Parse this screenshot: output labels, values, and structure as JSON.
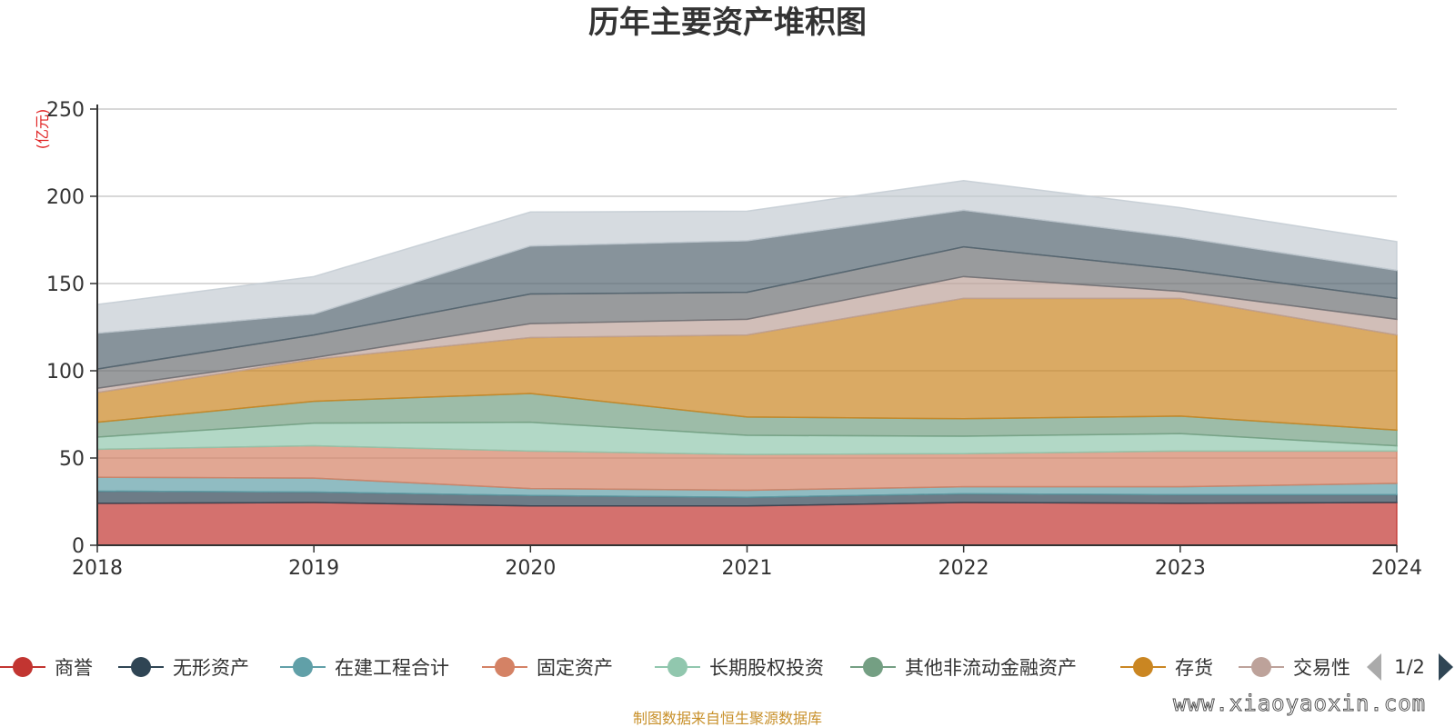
{
  "chart_data": {
    "type": "area",
    "stacked": true,
    "title": "历年主要资产堆积图",
    "ylabel": "(亿元)",
    "xlabel": "",
    "x": [
      "2018",
      "2019",
      "2020",
      "2021",
      "2022",
      "2023",
      "2024"
    ],
    "ylim": [
      0,
      250
    ],
    "yticks": [
      0,
      50,
      100,
      150,
      200,
      250
    ],
    "grid": true,
    "legend_position": "bottom",
    "series": [
      {
        "name": "商誉",
        "color": "#c23531",
        "values": [
          24,
          24.5,
          22.5,
          22.5,
          24.5,
          24,
          24.5
        ]
      },
      {
        "name": "无形资产",
        "color": "#2f4554",
        "values": [
          7,
          6,
          6,
          5,
          5,
          5,
          4.5
        ]
      },
      {
        "name": "在建工程合计",
        "color": "#61a0a8",
        "values": [
          8,
          8,
          4,
          4,
          4,
          4.5,
          6.5
        ]
      },
      {
        "name": "固定资产",
        "color": "#d48265",
        "values": [
          16,
          18.5,
          21.5,
          20.5,
          19,
          20.5,
          18.5
        ]
      },
      {
        "name": "长期股权投资",
        "color": "#91c7ae",
        "values": [
          7,
          13,
          16.5,
          11,
          10,
          10,
          3
        ]
      },
      {
        "name": "其他非流动金融资产",
        "color": "#749f83",
        "values": [
          8.5,
          12.5,
          16.5,
          10.5,
          10,
          10,
          9
        ]
      },
      {
        "name": "存货",
        "color": "#ca8622",
        "values": [
          17,
          24,
          32,
          47,
          69,
          67.5,
          54.5
        ]
      },
      {
        "name": "交易性金融资产",
        "color": "#bda29a",
        "values": [
          2.5,
          1,
          8,
          9,
          12.5,
          4,
          9
        ]
      },
      {
        "name": "",
        "color": "#6e7074",
        "values": [
          11,
          13,
          17,
          15.5,
          17,
          12.5,
          12
        ]
      },
      {
        "name": "",
        "color": "#546570",
        "values": [
          20.5,
          12,
          27.5,
          29.5,
          21,
          18.5,
          16
        ]
      },
      {
        "name": "",
        "color": "#c4ccd3",
        "values": [
          16.5,
          21.5,
          19.5,
          17,
          17,
          17,
          16.5
        ]
      }
    ],
    "opacities": [
      0.7,
      0.7,
      0.7,
      0.7,
      0.7,
      0.7,
      0.7,
      0.7,
      0.7,
      0.7,
      0.7
    ],
    "legend": {
      "visible_items": [
        "商誉",
        "无形资产",
        "在建工程合计",
        "固定资产",
        "长期股权投资",
        "其他非流动金融资产",
        "存货",
        "交易性"
      ],
      "page": "1/2"
    },
    "source": "制图数据来自恒生聚源数据库",
    "watermark": "www.xiaoyaoxin.com"
  }
}
